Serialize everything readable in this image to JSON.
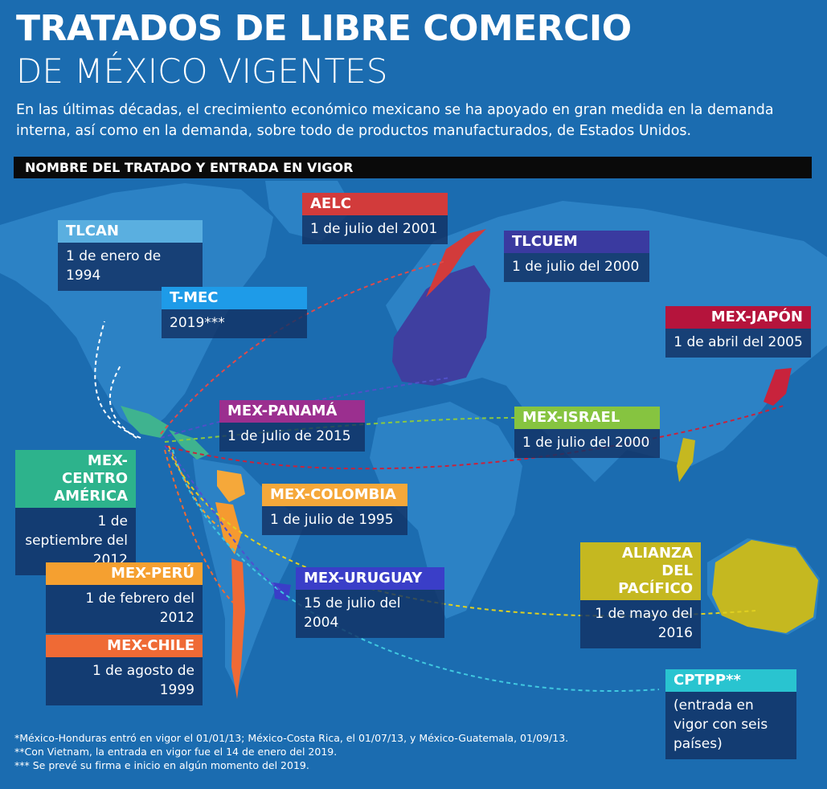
{
  "header": {
    "title": "TRATADOS DE LIBRE COMERCIO",
    "subtitle": "DE MÉXICO VIGENTES",
    "intro": "En las últimas décadas, el crecimiento económico mexicano se ha apoyado en gran medida en la demanda interna, así como en la demanda, sobre todo de productos manufacturados, de Estados Unidos."
  },
  "section_label": "NOMBRE DEL TRATADO Y ENTRADA EN VIGOR",
  "treaties": [
    {
      "name": "TLCAN",
      "date": "1 de enero de 1994"
    },
    {
      "name": "T-MEC",
      "date": "2019***"
    },
    {
      "name": "AELC",
      "date": "1 de julio del 2001"
    },
    {
      "name": "TLCUEM",
      "date": "1 de julio del 2000"
    },
    {
      "name": "MEX-JAPÓN",
      "date": "1 de abril del 2005"
    },
    {
      "name": "MEX-PANAMÁ",
      "date": "1 de julio de 2015"
    },
    {
      "name": "MEX-ISRAEL",
      "date": "1 de julio del 2000"
    },
    {
      "name": "MEX-CENTRO AMÉRICA",
      "date": "1 de septiembre del 2012"
    },
    {
      "name": "MEX-COLOMBIA",
      "date": "1 de julio de 1995"
    },
    {
      "name": "ALIANZA DEL PACÍFICO",
      "date": "1 de mayo del 2016"
    },
    {
      "name": "MEX-PERÚ",
      "date": "1 de febrero del 2012"
    },
    {
      "name": "MEX-URUGUAY",
      "date": "15 de julio del 2004"
    },
    {
      "name": "MEX-CHILE",
      "date": "1 de agosto de 1999"
    },
    {
      "name": "CPTPP**",
      "date": "(entrada en vigor con seis países)"
    }
  ],
  "footnotes": [
    "*México-Honduras entró en vigor el 01/01/13; México-Costa Rica, el 01/07/13, y México-Guatemala, 01/09/13.",
    "**Con Vietnam, la entrada en vigor fue el 14 de enero del 2019.",
    "*** Se prevé su firma e inicio en algún momento del 2019."
  ]
}
